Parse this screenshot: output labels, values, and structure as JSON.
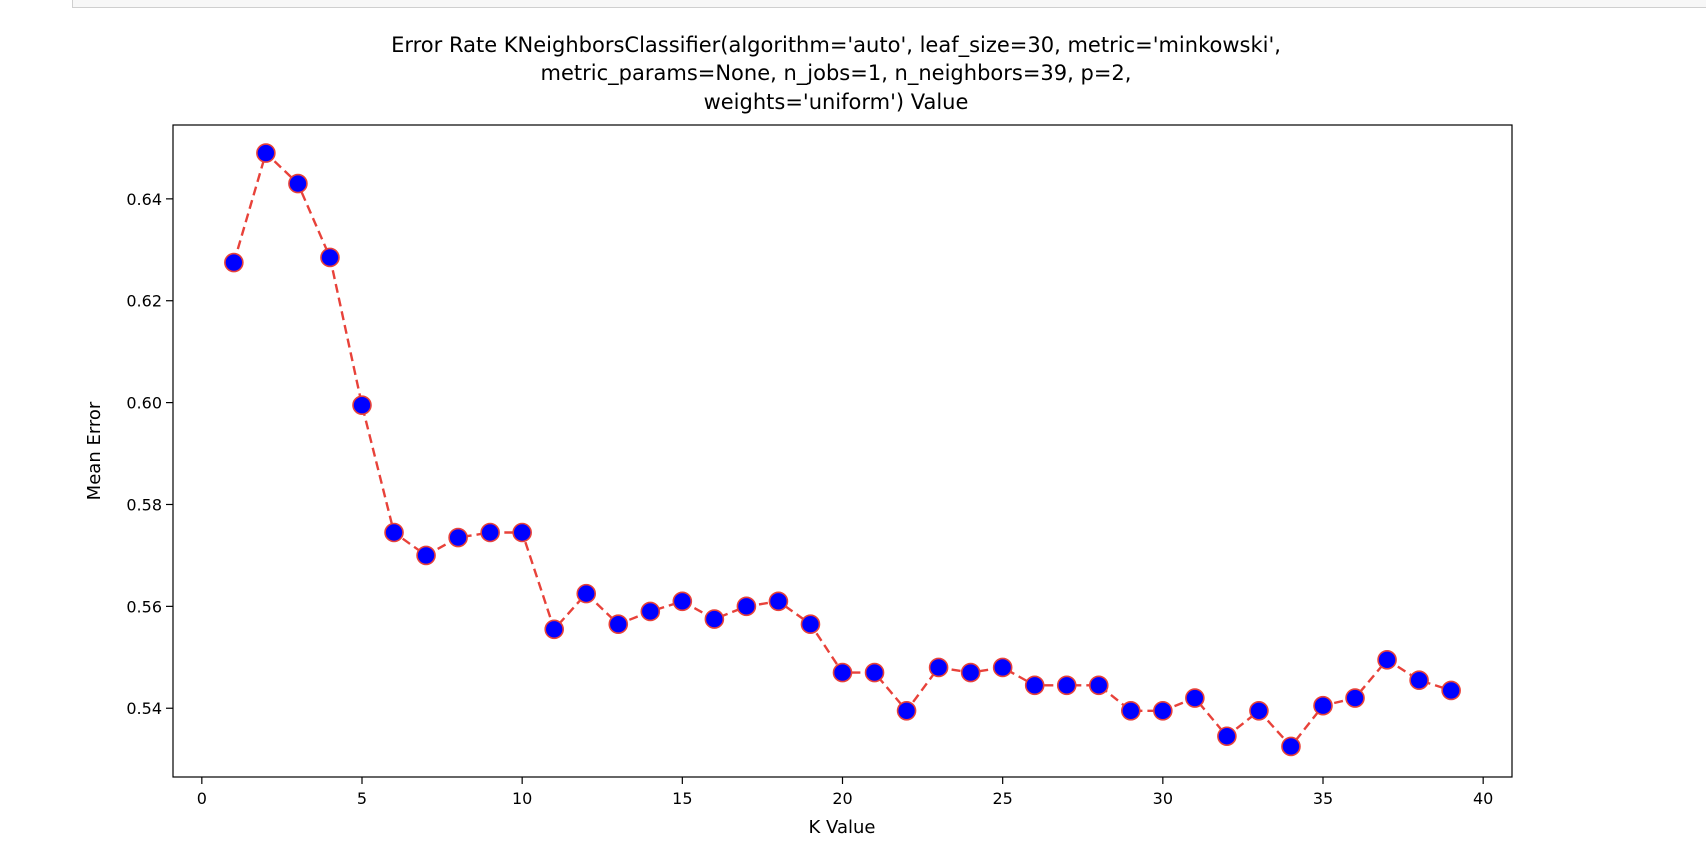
{
  "chart_data": {
    "type": "line",
    "title_lines": [
      "Error Rate KNeighborsClassifier(algorithm='auto', leaf_size=30, metric='minkowski',",
      "metric_params=None, n_jobs=1, n_neighbors=39, p=2,",
      "weights='uniform') Value"
    ],
    "xlabel": "K Value",
    "ylabel": "Mean Error",
    "xlim": [
      -0.9,
      40.9
    ],
    "ylim": [
      0.5265,
      0.6545
    ],
    "x_ticks": [
      0,
      5,
      10,
      15,
      20,
      25,
      30,
      35,
      40
    ],
    "y_ticks": [
      0.54,
      0.56,
      0.58,
      0.6,
      0.62,
      0.64
    ],
    "y_tick_labels": [
      "0.54",
      "0.56",
      "0.58",
      "0.60",
      "0.62",
      "0.64"
    ],
    "grid": false,
    "series": [
      {
        "line_color": "#e8423a",
        "line_style": "dashed",
        "marker": "circle",
        "marker_face_color": "#0000ff",
        "marker_edge_color": "#e8423a",
        "x": [
          1,
          2,
          3,
          4,
          5,
          6,
          7,
          8,
          9,
          10,
          11,
          12,
          13,
          14,
          15,
          16,
          17,
          18,
          19,
          20,
          21,
          22,
          23,
          24,
          25,
          26,
          27,
          28,
          29,
          30,
          31,
          32,
          33,
          34,
          35,
          36,
          37,
          38,
          39
        ],
        "y": [
          0.6275,
          0.649,
          0.643,
          0.6285,
          0.5995,
          0.5745,
          0.57,
          0.5735,
          0.5745,
          0.5745,
          0.5555,
          0.5625,
          0.5565,
          0.559,
          0.561,
          0.5575,
          0.56,
          0.561,
          0.5565,
          0.547,
          0.547,
          0.5395,
          0.548,
          0.547,
          0.548,
          0.5445,
          0.5445,
          0.5445,
          0.5395,
          0.5395,
          0.542,
          0.5345,
          0.5395,
          0.5325,
          0.5405,
          0.542,
          0.5495,
          0.5455,
          0.5435
        ]
      }
    ]
  }
}
